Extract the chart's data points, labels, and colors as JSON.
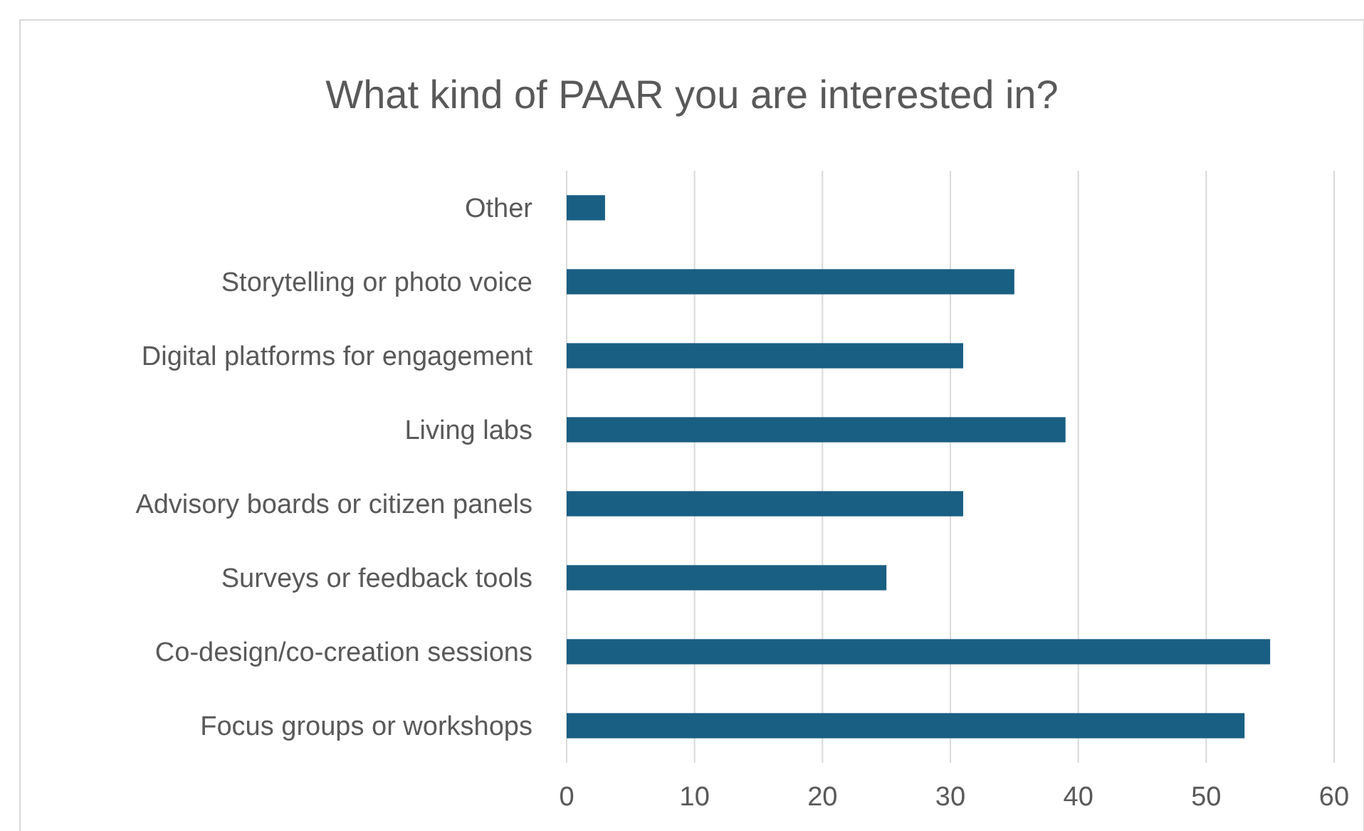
{
  "chart_data": {
    "type": "bar",
    "orientation": "horizontal",
    "title": "What kind of PAAR you are interested in?",
    "categories": [
      "Other",
      "Storytelling or photo voice",
      "Digital platforms for engagement",
      "Living labs",
      "Advisory boards or citizen panels",
      "Surveys or feedback tools",
      "Co-design/co-creation sessions",
      "Focus groups or workshops"
    ],
    "values": [
      3,
      35,
      31,
      39,
      31,
      25,
      55,
      53
    ],
    "color": "#195e83",
    "xlim": [
      0,
      60
    ],
    "xticks": [
      0,
      10,
      20,
      30,
      40,
      50,
      60
    ],
    "grid": "x"
  }
}
